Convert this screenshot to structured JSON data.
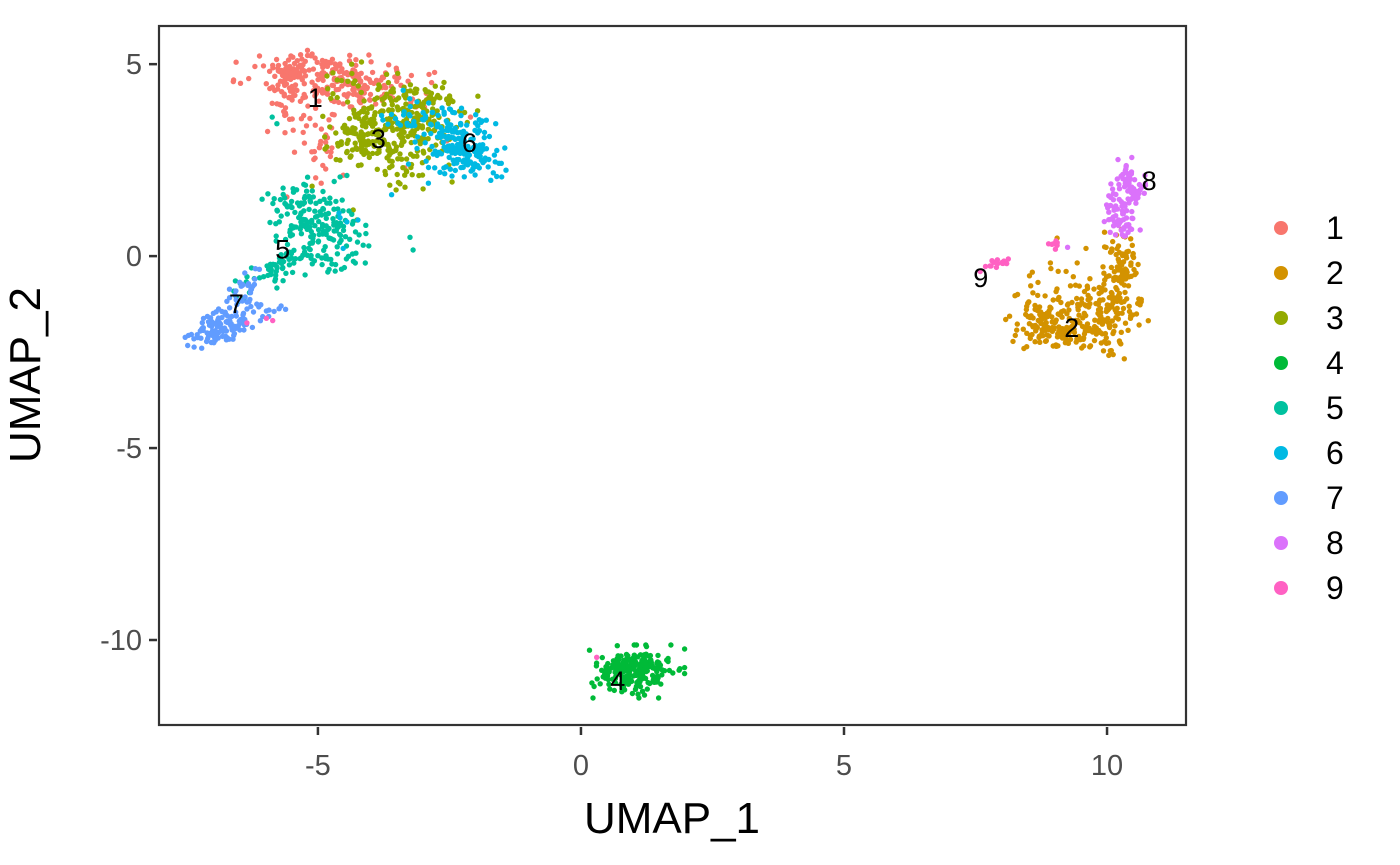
{
  "chart_data": {
    "type": "scatter",
    "title": "",
    "xlabel": "UMAP_1",
    "ylabel": "UMAP_2",
    "xlim": [
      -8.04,
      11.52
    ],
    "ylim": [
      -12.24,
      6.02
    ],
    "xticks": [
      -5,
      0,
      5,
      10
    ],
    "yticks": [
      5,
      0,
      -5,
      -10
    ],
    "grid": false,
    "legend_position": "right",
    "point_radius": 2.7,
    "seed": 1337,
    "clusters": [
      {
        "id": "1",
        "label": "1",
        "color": "#F8766D",
        "label_x": -5.05,
        "label_y": 4.12,
        "blobs": [
          {
            "cx": -4.75,
            "cy": 4.62,
            "sx": 0.8,
            "sy": 0.3,
            "rot": -6,
            "n": 150
          },
          {
            "cx": -5.55,
            "cy": 4.25,
            "sx": 0.22,
            "sy": 0.45,
            "rot": 0,
            "n": 55
          },
          {
            "cx": -5.2,
            "cy": 4.85,
            "sx": 0.4,
            "sy": 0.18,
            "rot": 0,
            "n": 35
          },
          {
            "cx": -4.05,
            "cy": 4.35,
            "sx": 0.5,
            "sy": 0.3,
            "rot": -12,
            "n": 60
          },
          {
            "cx": -4.9,
            "cy": 3.3,
            "sx": 0.3,
            "sy": 0.4,
            "rot": 0,
            "n": 25
          },
          {
            "cx": -4.85,
            "cy": 2.4,
            "sx": 0.2,
            "sy": 0.5,
            "rot": 0,
            "n": 12
          }
        ],
        "outliers": [
          [
            -5.59,
            1.54
          ],
          [
            -2.1,
            3.62
          ],
          [
            -2.55,
            3.0
          ],
          [
            -3.35,
            2.3
          ]
        ]
      },
      {
        "id": "2",
        "label": "2",
        "color": "#D39200",
        "label_x": 9.33,
        "label_y": -1.87,
        "blobs": [
          {
            "cx": 9.3,
            "cy": -2.02,
            "sx": 0.55,
            "sy": 0.22,
            "rot": -8,
            "n": 140
          },
          {
            "cx": 9.95,
            "cy": -1.35,
            "sx": 0.3,
            "sy": 0.35,
            "rot": 35,
            "n": 85
          },
          {
            "cx": 10.3,
            "cy": -0.35,
            "sx": 0.16,
            "sy": 0.45,
            "rot": 6,
            "n": 75
          },
          {
            "cx": 8.95,
            "cy": -1.6,
            "sx": 0.3,
            "sy": 0.28,
            "rot": 0,
            "n": 60
          },
          {
            "cx": 9.3,
            "cy": -0.7,
            "sx": 0.5,
            "sy": 0.4,
            "rot": 0,
            "n": 30
          }
        ],
        "outliers": [
          [
            8.58,
            -0.42
          ],
          [
            9.05,
            0.47
          ],
          [
            8.3,
            -1.0
          ],
          [
            10.45,
            0.45
          ],
          [
            9.6,
            0.2
          ]
        ]
      },
      {
        "id": "3",
        "label": "3",
        "color": "#93AA00",
        "label_x": -3.85,
        "label_y": 3.05,
        "blobs": [
          {
            "cx": -3.55,
            "cy": 3.35,
            "sx": 0.6,
            "sy": 0.42,
            "rot": -18,
            "n": 210
          },
          {
            "cx": -4.15,
            "cy": 2.95,
            "sx": 0.32,
            "sy": 0.3,
            "rot": 0,
            "n": 55
          },
          {
            "cx": -2.95,
            "cy": 3.95,
            "sx": 0.45,
            "sy": 0.28,
            "rot": -15,
            "n": 65
          },
          {
            "cx": -3.5,
            "cy": 2.3,
            "sx": 0.3,
            "sy": 0.25,
            "rot": 0,
            "n": 25
          },
          {
            "cx": -4.3,
            "cy": 4.6,
            "sx": 0.35,
            "sy": 0.25,
            "rot": 0,
            "n": 18
          }
        ],
        "outliers": [
          [
            -4.33,
            1.2
          ],
          [
            -5.11,
            1.82
          ],
          [
            -4.26,
            0.94
          ],
          [
            -2.45,
            1.93
          ],
          [
            -3.0,
            1.75
          ]
        ]
      },
      {
        "id": "4",
        "label": "4",
        "color": "#00BA38",
        "label_x": 0.7,
        "label_y": -11.07,
        "blobs": [
          {
            "cx": 1.05,
            "cy": -10.82,
            "sx": 0.4,
            "sy": 0.3,
            "rot": 0,
            "n": 190
          },
          {
            "cx": 0.68,
            "cy": -10.62,
            "sx": 0.18,
            "sy": 0.15,
            "rot": 0,
            "n": 25
          },
          {
            "cx": 1.35,
            "cy": -10.55,
            "sx": 0.2,
            "sy": 0.12,
            "rot": 0,
            "n": 20
          }
        ],
        "outliers": []
      },
      {
        "id": "5",
        "label": "5",
        "color": "#00C19F",
        "label_x": -5.67,
        "label_y": 0.17,
        "blobs": [
          {
            "cx": -5.0,
            "cy": 0.72,
            "sx": 0.38,
            "sy": 0.5,
            "rot": 10,
            "n": 130
          },
          {
            "cx": -5.75,
            "cy": -0.3,
            "sx": 0.5,
            "sy": 0.16,
            "rot": 38,
            "n": 60
          },
          {
            "cx": -5.3,
            "cy": 1.5,
            "sx": 0.45,
            "sy": 0.28,
            "rot": 20,
            "n": 40
          },
          {
            "cx": -4.55,
            "cy": 0.3,
            "sx": 0.2,
            "sy": 0.35,
            "rot": 0,
            "n": 20
          }
        ],
        "outliers": [
          [
            -5.87,
            3.62
          ],
          [
            -5.78,
            3.45
          ],
          [
            -3.25,
            0.49
          ],
          [
            -3.19,
            0.16
          ],
          [
            -5.78,
            -0.83
          ],
          [
            -4.1,
            -0.18
          ],
          [
            -6.3,
            -0.95
          ],
          [
            -4.45,
            2.1
          ]
        ]
      },
      {
        "id": "6",
        "label": "6",
        "color": "#00B9E3",
        "label_x": -2.12,
        "label_y": 2.95,
        "blobs": [
          {
            "cx": -2.22,
            "cy": 2.6,
            "sx": 0.38,
            "sy": 0.28,
            "rot": -25,
            "n": 120
          },
          {
            "cx": -2.6,
            "cy": 3.25,
            "sx": 0.32,
            "sy": 0.32,
            "rot": 0,
            "n": 55
          },
          {
            "cx": -3.2,
            "cy": 3.6,
            "sx": 0.4,
            "sy": 0.3,
            "rot": 0,
            "n": 30
          },
          {
            "cx": -1.95,
            "cy": 3.3,
            "sx": 0.15,
            "sy": 0.25,
            "rot": 0,
            "n": 15
          }
        ],
        "outliers": [
          [
            -4.58,
            1.0
          ],
          [
            -4.45,
            0.89
          ],
          [
            -4.52,
            0.2
          ],
          [
            -4.6,
            1.12
          ],
          [
            -4.24,
            0.94
          ],
          [
            -3.38,
            4.32
          ],
          [
            -1.62,
            3.45
          ],
          [
            -3.6,
            1.6
          ],
          [
            -2.9,
            1.9
          ]
        ]
      },
      {
        "id": "7",
        "label": "7",
        "color": "#619CFF",
        "label_x": -6.55,
        "label_y": -1.25,
        "blobs": [
          {
            "cx": -6.92,
            "cy": -1.92,
            "sx": 0.3,
            "sy": 0.17,
            "rot": 35,
            "n": 105
          },
          {
            "cx": -6.5,
            "cy": -1.0,
            "sx": 0.33,
            "sy": 0.13,
            "rot": 55,
            "n": 28
          },
          {
            "cx": -6.05,
            "cy": -1.35,
            "sx": 0.28,
            "sy": 0.14,
            "rot": 10,
            "n": 16
          }
        ],
        "outliers": [
          [
            -6.39,
            -0.44
          ],
          [
            -5.7,
            -1.3
          ],
          [
            -6.2,
            -0.6
          ]
        ]
      },
      {
        "id": "8",
        "label": "8",
        "color": "#DB72FB",
        "label_x": 10.8,
        "label_y": 1.95,
        "blobs": [
          {
            "cx": 10.42,
            "cy": 1.9,
            "sx": 0.13,
            "sy": 0.28,
            "rot": 12,
            "n": 55
          },
          {
            "cx": 10.2,
            "cy": 1.2,
            "sx": 0.14,
            "sy": 0.3,
            "rot": 15,
            "n": 45
          },
          {
            "cx": 10.33,
            "cy": 0.75,
            "sx": 0.12,
            "sy": 0.12,
            "rot": 0,
            "n": 12
          }
        ],
        "outliers": [
          [
            10.63,
            0.68
          ],
          [
            9.25,
            0.23
          ],
          [
            10.06,
            0.62
          ],
          [
            10.72,
            2.1
          ]
        ]
      },
      {
        "id": "9",
        "label": "9",
        "color": "#FF61C3",
        "label_x": 7.6,
        "label_y": -0.57,
        "blobs": [
          {
            "cx": 7.95,
            "cy": -0.17,
            "sx": 0.18,
            "sy": 0.06,
            "rot": 18,
            "n": 15
          },
          {
            "cx": 8.95,
            "cy": 0.3,
            "sx": 0.07,
            "sy": 0.1,
            "rot": 0,
            "n": 8
          }
        ],
        "outliers": [
          [
            -5.98,
            -1.62
          ],
          [
            -5.86,
            -1.68
          ],
          [
            -6.35,
            -1.74
          ],
          [
            0.3,
            -10.45
          ]
        ]
      }
    ]
  },
  "legend": {
    "items": [
      {
        "label": "1",
        "color": "#F8766D"
      },
      {
        "label": "2",
        "color": "#D39200"
      },
      {
        "label": "3",
        "color": "#93AA00"
      },
      {
        "label": "4",
        "color": "#00BA38"
      },
      {
        "label": "5",
        "color": "#00C19F"
      },
      {
        "label": "6",
        "color": "#00B9E3"
      },
      {
        "label": "7",
        "color": "#619CFF"
      },
      {
        "label": "8",
        "color": "#DB72FB"
      },
      {
        "label": "9",
        "color": "#FF61C3"
      }
    ]
  },
  "style": {
    "panel_border_color": "#333333",
    "tick_color": "#333333",
    "tick_label_color": "#4d4d4d",
    "axis_title_color": "#000000",
    "cluster_label_color": "#000000",
    "background": "#ffffff"
  }
}
